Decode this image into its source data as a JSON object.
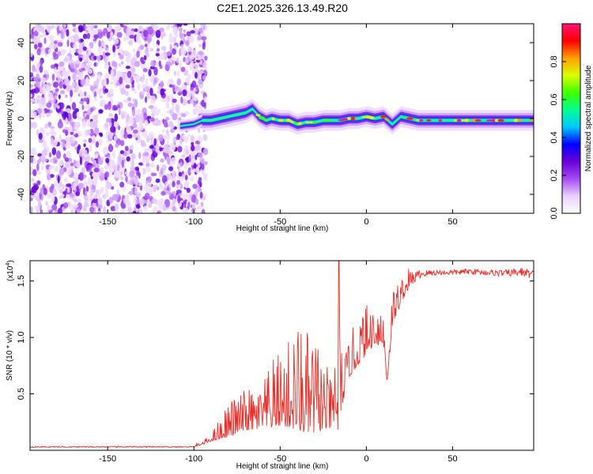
{
  "title": "C2E1.2025.326.13.49.R20",
  "chart_data": [
    {
      "type": "heatmap",
      "name": "spectrogram",
      "xlabel": "Height of straight line (km)",
      "ylabel": "Frequency (Hz)",
      "xlim": [
        -195,
        97
      ],
      "ylim": [
        -50,
        50
      ],
      "xticks": [
        -150,
        -100,
        -50,
        0,
        50
      ],
      "yticks": [
        -40,
        -20,
        0,
        20,
        40
      ],
      "noise_region_x": [
        -195,
        -97
      ],
      "line_track": {
        "x": [
          -108,
          -100,
          -95,
          -90,
          -85,
          -80,
          -75,
          -70,
          -66,
          -62,
          -58,
          -55,
          -50,
          -45,
          -40,
          -35,
          -30,
          -25,
          -20,
          -15,
          -10,
          -5,
          0,
          5,
          10,
          15,
          20,
          25,
          30,
          40,
          50,
          60,
          70,
          80,
          90,
          97
        ],
        "freq": [
          -4,
          -3,
          -1,
          -1,
          0,
          1,
          2,
          3,
          5,
          1,
          -1,
          0,
          -1,
          -1,
          -3,
          -2,
          -2,
          -1,
          -1,
          -1,
          0,
          0,
          1,
          0,
          1,
          -3,
          1,
          0,
          -1,
          -1,
          -1,
          -1,
          -1,
          -1,
          -1,
          -1
        ]
      },
      "colorbar": {
        "label": "Normalized spectral amplitude",
        "ticks": [
          0.0,
          0.2,
          0.4,
          0.6,
          0.8
        ],
        "range": [
          0,
          1
        ],
        "colors": [
          "#ffffff",
          "#e8d0ff",
          "#a24cf0",
          "#6a00d8",
          "#0000ff",
          "#00c8ff",
          "#00ff90",
          "#40ff00",
          "#d8ff00",
          "#ffa000",
          "#ff0000",
          "#ff1478"
        ]
      }
    },
    {
      "type": "line",
      "name": "snr",
      "xlabel": "Height of straight line (km)",
      "ylabel": "SNR (10 * v/v)",
      "scale_label": "(x10",
      "scale_exp": "4",
      "scale_close": ")",
      "xlim": [
        -195,
        97
      ],
      "ylim": [
        0,
        1.68
      ],
      "xticks": [
        -150,
        -100,
        -50,
        0,
        50
      ],
      "yticks": [
        0.5,
        1.0,
        1.5
      ],
      "color": "#e8302a",
      "envelope": {
        "x": [
          -195,
          -110,
          -100,
          -95,
          -90,
          -85,
          -80,
          -75,
          -70,
          -65,
          -60,
          -55,
          -50,
          -45,
          -40,
          -35,
          -30,
          -25,
          -20,
          -16,
          -14,
          -10,
          -5,
          0,
          5,
          10,
          12,
          15,
          20,
          25,
          30,
          40,
          50,
          60,
          70,
          80,
          90,
          97
        ],
        "base": [
          0.03,
          0.03,
          0.03,
          0.05,
          0.08,
          0.1,
          0.12,
          0.15,
          0.18,
          0.18,
          0.2,
          0.2,
          0.22,
          0.2,
          0.18,
          0.15,
          0.15,
          0.18,
          0.2,
          0.15,
          0.4,
          0.65,
          0.75,
          0.85,
          0.95,
          0.9,
          0.6,
          1.1,
          1.3,
          1.45,
          1.52,
          1.55,
          1.55,
          1.56,
          1.55,
          1.54,
          1.54,
          1.52
        ],
        "peak": [
          0.04,
          0.04,
          0.05,
          0.08,
          0.15,
          0.3,
          0.45,
          0.5,
          0.55,
          0.55,
          0.6,
          0.8,
          0.9,
          1.0,
          1.2,
          1.05,
          1.12,
          0.85,
          0.6,
          1.68,
          0.75,
          1.0,
          1.2,
          1.3,
          1.35,
          1.4,
          0.6,
          1.45,
          1.55,
          1.62,
          1.6,
          1.6,
          1.6,
          1.61,
          1.6,
          1.6,
          1.62,
          1.6
        ]
      }
    }
  ]
}
